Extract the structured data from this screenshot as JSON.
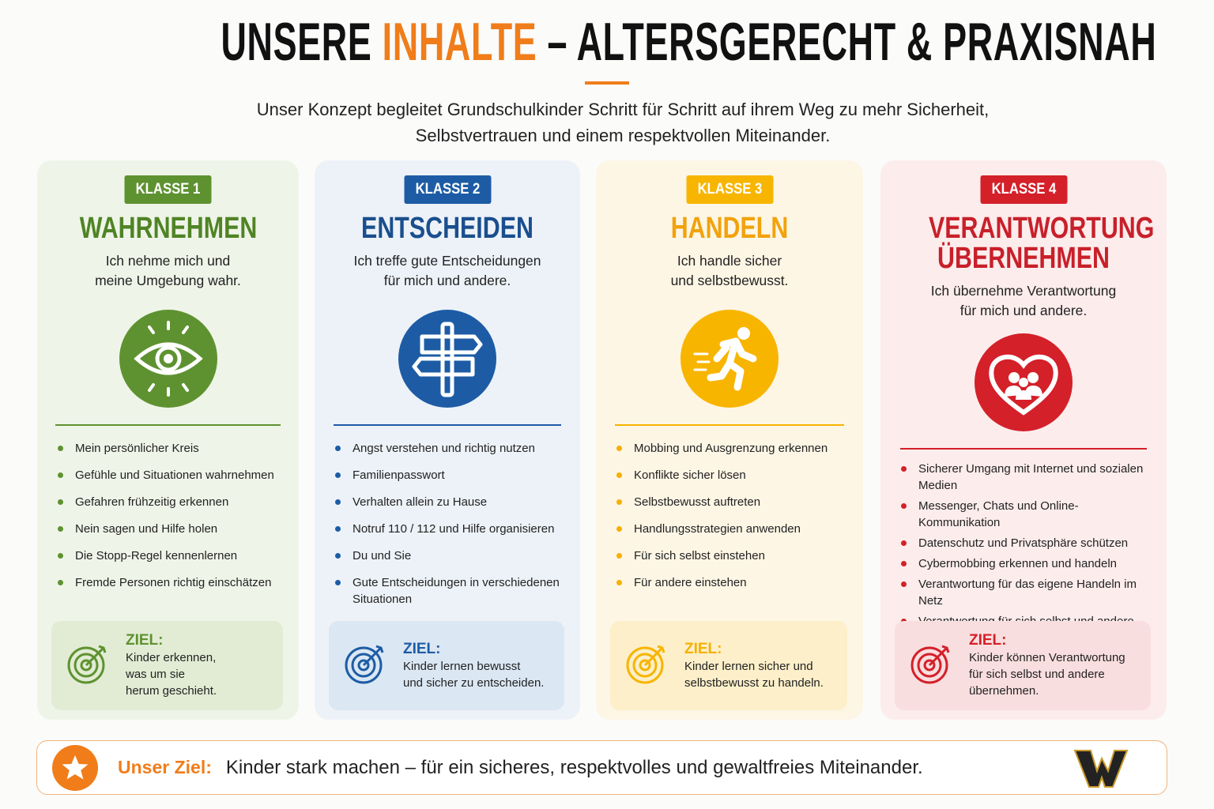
{
  "header": {
    "title": {
      "before": "UNSERE",
      "highlight": "INHALTE",
      "after": "– ALTERSGERECHT & PRAXISNAH"
    },
    "intro": [
      "Unser Konzept begleitet Grundschulkinder Schritt für Schritt auf ihrem Weg zu mehr Sicherheit,",
      "Selbstvertrauen und einem respektvollen Miteinander."
    ]
  },
  "cards": [
    {
      "badge": "KLASSE 1",
      "title": "WAHRNEHMEN",
      "subtitle": [
        "Ich nehme mich und",
        "meine Umgebung wahr."
      ],
      "items": [
        "Mein persönlicher Kreis",
        "Gefühle und Situationen wahrnehmen",
        "Gefahren frühzeitig erkennen",
        "Nein sagen und Hilfe holen",
        "Die Stopp-Regel kennenlernen",
        "Fremde Personen richtig einschätzen"
      ],
      "goal": {
        "label": "ZIEL:",
        "text": [
          "Kinder erkennen,",
          "was um sie",
          "herum geschieht."
        ]
      }
    },
    {
      "badge": "KLASSE 2",
      "title": "ENTSCHEIDEN",
      "subtitle": [
        "Ich treffe gute Entscheidungen",
        "für mich und andere."
      ],
      "items": [
        "Angst verstehen und richtig nutzen",
        "Familienpasswort",
        "Verhalten allein zu Hause",
        "Notruf 110 / 112 und Hilfe organisieren",
        "Du und Sie",
        "Gute Entscheidungen in verschiedenen Situationen"
      ],
      "goal": {
        "label": "ZIEL:",
        "text": [
          "Kinder lernen bewusst",
          "und sicher zu entscheiden."
        ]
      }
    },
    {
      "badge": "KLASSE 3",
      "title": "HANDELN",
      "subtitle": [
        "Ich handle sicher",
        "und selbstbewusst."
      ],
      "items": [
        "Mobbing und Ausgrenzung erkennen",
        "Konflikte sicher lösen",
        "Selbstbewusst auftreten",
        "Handlungsstrategien anwenden",
        "Für sich selbst einstehen",
        "Für andere einstehen"
      ],
      "goal": {
        "label": "ZIEL:",
        "text": [
          "Kinder lernen sicher und",
          "selbstbewusst zu handeln."
        ]
      }
    },
    {
      "badge": "KLASSE 4",
      "title": "VERANTWORTUNG ÜBERNEHMEN",
      "subtitle": [
        "Ich übernehme Verantwortung",
        "für mich und andere."
      ],
      "items": [
        "Sicherer Umgang mit Internet und sozialen Medien",
        "Messenger, Chats und Online-Kommunikation",
        "Datenschutz und Privatsphäre schützen",
        "Cybermobbing erkennen und handeln",
        "Verantwortung für das eigene Handeln im Netz",
        "Verantwortung für sich selbst und andere übernehmen"
      ],
      "goal": {
        "label": "ZIEL:",
        "text": [
          "Kinder können Verantwortung",
          "für sich selbst und andere",
          "übernehmen."
        ]
      }
    }
  ],
  "footer": {
    "label": "Unser Ziel:",
    "text": "Kinder stark machen – für ein sicheres, respektvolles und gewaltfreies Miteinander."
  }
}
